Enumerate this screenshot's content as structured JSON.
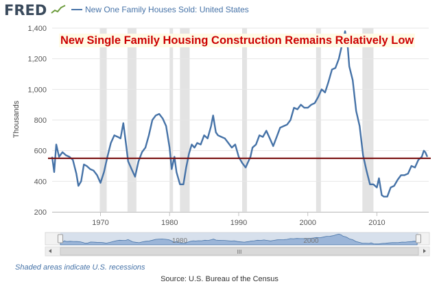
{
  "header": {
    "logo_text": "FRED",
    "series_name": "New One Family Houses Sold: United States"
  },
  "overlay_title": "New Single Family Housing Construction Remains Relatively Low",
  "footer": {
    "recession_note": "Shaded areas indicate U.S. recessions",
    "source": "Source: U.S. Bureau of the Census"
  },
  "navigator": {
    "labels": [
      "1980",
      "2000"
    ],
    "scroll_grip": "III"
  },
  "colors": {
    "series": "#4572a7",
    "reference_line": "#7a1010",
    "recession": "#e3e3e3",
    "title_text": "#cc0000"
  },
  "chart_data": {
    "type": "line",
    "title": "",
    "xlabel": "",
    "ylabel": "Thousands",
    "xlim": [
      1963,
      2017.5
    ],
    "ylim": [
      200,
      1400
    ],
    "yticks": [
      200,
      400,
      600,
      800,
      1000,
      1200,
      1400
    ],
    "xticks": [
      1970,
      1980,
      1990,
      2000,
      2010
    ],
    "grid": true,
    "reference_line": 550,
    "recessions": [
      [
        1969.9,
        1970.9
      ],
      [
        1973.9,
        1975.2
      ],
      [
        1980.0,
        1980.5
      ],
      [
        1981.5,
        1982.9
      ],
      [
        1990.5,
        1991.2
      ],
      [
        2001.2,
        2001.9
      ],
      [
        2007.9,
        2009.5
      ]
    ],
    "series": [
      {
        "name": "New One Family Houses Sold: United States",
        "x": [
          1963.0,
          1963.3,
          1963.6,
          1964.0,
          1964.5,
          1965.0,
          1965.5,
          1966.0,
          1966.5,
          1966.8,
          1967.2,
          1967.6,
          1968.0,
          1968.5,
          1969.0,
          1969.5,
          1970.0,
          1970.5,
          1971.0,
          1971.5,
          1972.0,
          1972.5,
          1972.9,
          1973.3,
          1973.7,
          1974.0,
          1974.5,
          1975.0,
          1975.5,
          1976.0,
          1976.5,
          1977.0,
          1977.5,
          1978.0,
          1978.5,
          1979.0,
          1979.5,
          1980.0,
          1980.3,
          1980.7,
          1981.0,
          1981.5,
          1982.0,
          1982.4,
          1982.8,
          1983.2,
          1983.6,
          1984.0,
          1984.5,
          1985.0,
          1985.5,
          1986.0,
          1986.3,
          1986.7,
          1987.0,
          1987.5,
          1988.0,
          1988.5,
          1989.0,
          1989.5,
          1990.0,
          1990.5,
          1991.0,
          1991.3,
          1991.7,
          1992.0,
          1992.5,
          1993.0,
          1993.5,
          1994.0,
          1994.5,
          1995.0,
          1995.5,
          1996.0,
          1996.5,
          1997.0,
          1997.5,
          1998.0,
          1998.5,
          1999.0,
          1999.5,
          2000.0,
          2000.5,
          2001.0,
          2001.5,
          2002.0,
          2002.5,
          2003.0,
          2003.5,
          2004.0,
          2004.5,
          2005.0,
          2005.4,
          2005.8,
          2006.0,
          2006.5,
          2007.0,
          2007.5,
          2008.0,
          2008.5,
          2009.0,
          2009.5,
          2010.0,
          2010.3,
          2010.7,
          2011.0,
          2011.5,
          2012.0,
          2012.5,
          2013.0,
          2013.5,
          2014.0,
          2014.5,
          2015.0,
          2015.5,
          2016.0,
          2016.5,
          2016.8,
          2017.0,
          2017.3
        ],
        "values": [
          560,
          460,
          640,
          560,
          590,
          570,
          560,
          540,
          450,
          370,
          400,
          510,
          500,
          480,
          470,
          440,
          390,
          460,
          560,
          650,
          700,
          690,
          680,
          780,
          640,
          530,
          480,
          430,
          530,
          590,
          620,
          700,
          800,
          830,
          840,
          810,
          760,
          620,
          480,
          560,
          460,
          380,
          380,
          490,
          580,
          640,
          620,
          650,
          640,
          700,
          680,
          760,
          830,
          720,
          700,
          690,
          680,
          650,
          620,
          640,
          560,
          520,
          490,
          520,
          560,
          620,
          640,
          700,
          690,
          730,
          680,
          630,
          690,
          750,
          760,
          770,
          800,
          880,
          870,
          900,
          880,
          880,
          900,
          910,
          950,
          1000,
          980,
          1050,
          1130,
          1140,
          1200,
          1300,
          1380,
          1270,
          1150,
          1060,
          860,
          760,
          570,
          470,
          380,
          380,
          360,
          420,
          310,
          300,
          300,
          360,
          370,
          410,
          440,
          440,
          450,
          500,
          490,
          540,
          560,
          600,
          590,
          560
        ]
      }
    ]
  }
}
